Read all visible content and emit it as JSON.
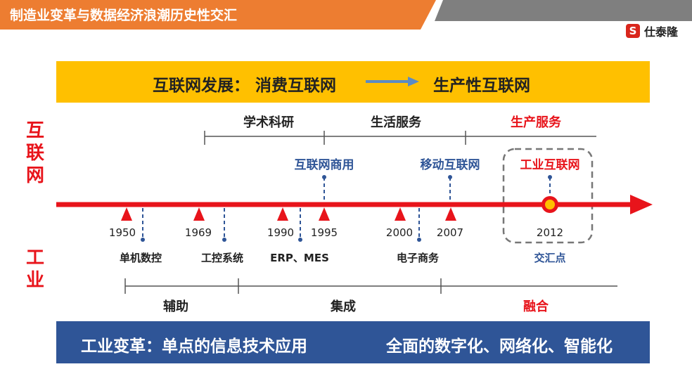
{
  "header": {
    "title": "制造业变革与数据经济浪潮历史性交汇",
    "logo_text": "仕泰隆",
    "logo_mark": "S",
    "colors": {
      "bar": "#ed7d31",
      "shade": "#7f7f7f"
    }
  },
  "internet_banner": {
    "left": "互联网发展：  消费互联网",
    "right": "生产性互联网",
    "color": "#ffc000"
  },
  "industry_banner": {
    "left": "工业变革：单点的信息技术应用",
    "right": "全面的数字化、网络化、智能化",
    "color": "#2f5597"
  },
  "side_labels": {
    "internet": [
      "互",
      "联",
      "网"
    ],
    "industry": [
      "工",
      "业"
    ]
  },
  "internet_periods": [
    "学术科研",
    "生活服务",
    "生产服务"
  ],
  "internet_events": [
    "互联网商用",
    "移动互联网",
    "工业互联网"
  ],
  "years": [
    "1950",
    "1969",
    "1990",
    "1995",
    "2000",
    "2007",
    "2012"
  ],
  "industry_milestones": [
    "单机数控",
    "工控系统",
    "ERP、MES",
    "电子商务",
    "交汇点"
  ],
  "industry_periods": [
    "辅助",
    "集成",
    "融合"
  ],
  "colors": {
    "timeline": "#e8141b",
    "accent_blue": "#2f5597",
    "highlight": "#ffc000"
  }
}
